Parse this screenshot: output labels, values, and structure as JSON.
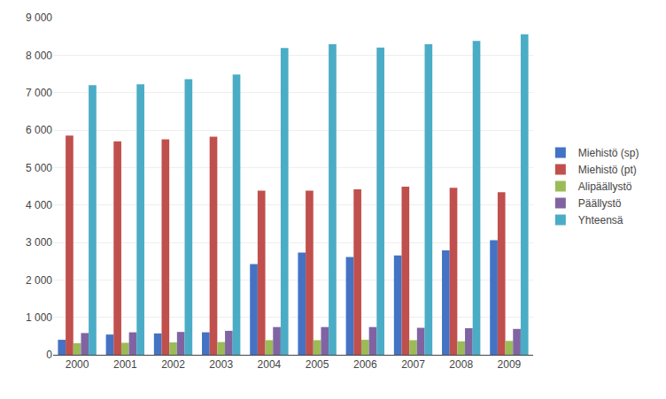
{
  "chart_data": {
    "type": "bar",
    "categories": [
      "2000",
      "2001",
      "2002",
      "2003",
      "2004",
      "2005",
      "2006",
      "2007",
      "2008",
      "2009"
    ],
    "series": [
      {
        "name": "Miehistö (sp)",
        "color": "#4472C4",
        "values": [
          400,
          540,
          570,
          600,
          2420,
          2730,
          2610,
          2650,
          2790,
          3060
        ]
      },
      {
        "name": "Miehistö (pt)",
        "color": "#C0504D",
        "values": [
          5850,
          5700,
          5750,
          5820,
          4380,
          4380,
          4420,
          4490,
          4460,
          4340
        ]
      },
      {
        "name": "Alipäällystö",
        "color": "#9BBB59",
        "values": [
          310,
          320,
          330,
          340,
          390,
          390,
          400,
          390,
          360,
          370
        ]
      },
      {
        "name": "Päällystö",
        "color": "#8064A2",
        "values": [
          580,
          600,
          610,
          640,
          740,
          740,
          740,
          720,
          710,
          690
        ]
      },
      {
        "name": "Yhteensä",
        "color": "#4BACC6",
        "values": [
          7200,
          7220,
          7360,
          7480,
          8190,
          8290,
          8200,
          8290,
          8380,
          8560
        ]
      }
    ],
    "ylim": [
      0,
      9000
    ],
    "yticks": [
      0,
      {
        "value": 1000,
        "label": "1 000"
      },
      {
        "value": 2000,
        "label": "2 000"
      },
      {
        "value": 3000,
        "label": "3 000"
      },
      {
        "value": 4000,
        "label": "4 000"
      },
      {
        "value": 5000,
        "label": "5 000"
      },
      {
        "value": 6000,
        "label": "6 000"
      },
      {
        "value": 7000,
        "label": "7 000"
      },
      {
        "value": 8000,
        "label": "8 000"
      },
      {
        "value": 9000,
        "label": "9 000"
      }
    ],
    "grid": true,
    "legend": "right"
  }
}
